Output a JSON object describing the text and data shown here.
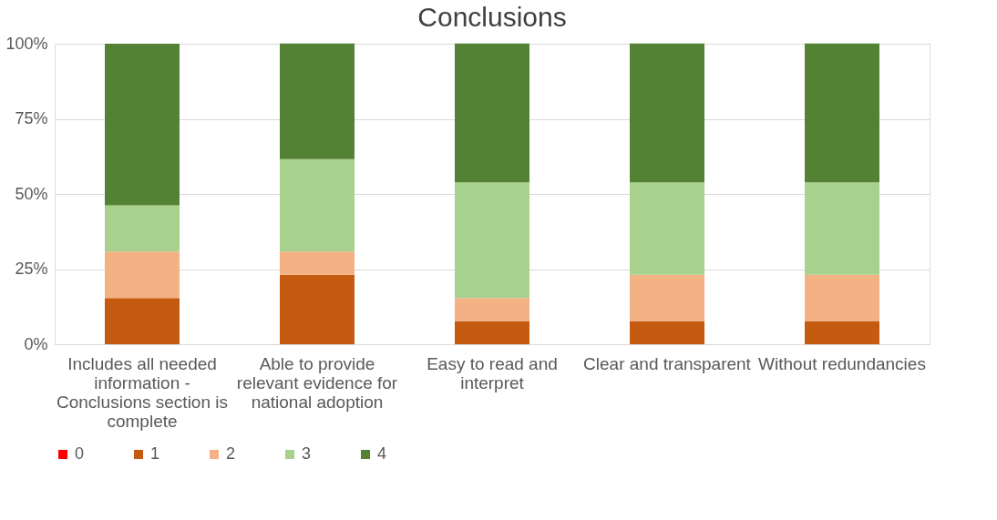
{
  "chart_data": {
    "type": "bar",
    "title": "Conclusions",
    "stacked": true,
    "grid": "y",
    "legend": "bottom",
    "categories": [
      "Includes all needed information - Conclusions section is complete",
      "Able to provide relevant evidence for national adoption",
      "Easy to read and interpret",
      "Clear and transparent",
      "Without redundancies"
    ],
    "ylim": [
      0,
      100
    ],
    "yticks": [
      {
        "value": 0,
        "label": "0%"
      },
      {
        "value": 25,
        "label": "25%"
      },
      {
        "value": 50,
        "label": "50%"
      },
      {
        "value": 75,
        "label": "75%"
      },
      {
        "value": 100,
        "label": "100%"
      }
    ],
    "series": [
      {
        "name": "0",
        "color": "#ff0000",
        "values": [
          0,
          0,
          0,
          0,
          0
        ]
      },
      {
        "name": "1",
        "color": "#c55a11",
        "values": [
          15.4,
          23.1,
          7.7,
          7.7,
          7.7
        ]
      },
      {
        "name": "2",
        "color": "#f4b183",
        "values": [
          15.4,
          7.7,
          7.7,
          15.4,
          15.4
        ]
      },
      {
        "name": "3",
        "color": "#a9d18e",
        "values": [
          15.4,
          30.8,
          38.5,
          30.8,
          30.8
        ]
      },
      {
        "name": "4",
        "color": "#548235",
        "values": [
          53.8,
          38.5,
          46.2,
          46.2,
          46.2
        ]
      }
    ]
  }
}
